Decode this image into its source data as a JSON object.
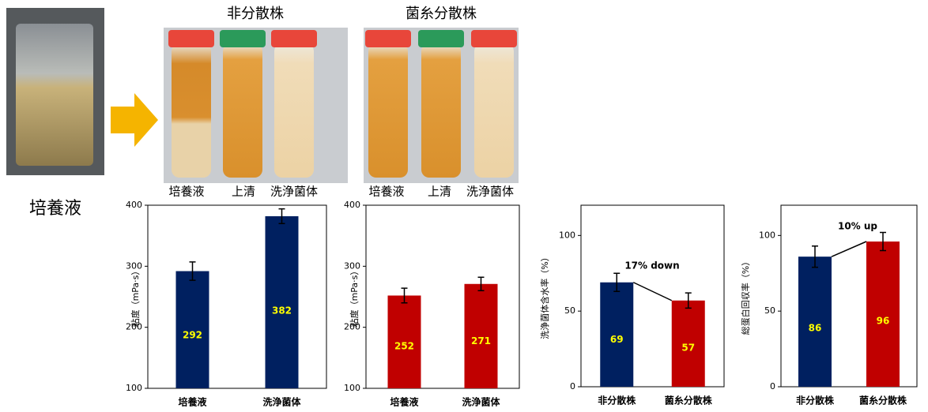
{
  "figure": {
    "culture_label": "培養液",
    "photo_groups": [
      {
        "title": "非分散株",
        "tube_labels": [
          "培養液",
          "上清",
          "洗浄菌体"
        ]
      },
      {
        "title": "菌糸分散株",
        "tube_labels": [
          "培養液",
          "上清",
          "洗浄菌体"
        ]
      }
    ]
  },
  "chart_data": [
    {
      "type": "bar",
      "y_label": "粘度（mPa·s）",
      "categories": [
        "培養液",
        "洗浄菌体"
      ],
      "values": [
        292,
        382
      ],
      "errors": [
        15,
        12
      ],
      "colors": [
        "#002060",
        "#002060"
      ],
      "ylim": [
        100,
        400
      ],
      "yticks": [
        100,
        200,
        300,
        400
      ]
    },
    {
      "type": "bar",
      "y_label": "粘度（mPa·s）",
      "categories": [
        "培養液",
        "洗浄菌体"
      ],
      "values": [
        252,
        271
      ],
      "errors": [
        12,
        11
      ],
      "colors": [
        "#c00000",
        "#c00000"
      ],
      "ylim": [
        100,
        400
      ],
      "yticks": [
        100,
        200,
        300,
        400
      ]
    },
    {
      "type": "bar",
      "y_label": "洗浄菌体含水率（%）",
      "categories": [
        "非分散株",
        "菌糸分散株"
      ],
      "values": [
        69,
        57
      ],
      "errors": [
        6,
        5
      ],
      "colors": [
        "#002060",
        "#c00000"
      ],
      "ylim": [
        0,
        120
      ],
      "yticks": [
        0,
        50,
        100
      ],
      "annotation": "17% down"
    },
    {
      "type": "bar",
      "y_label": "総蛋白回収率（%）",
      "categories": [
        "非分散株",
        "菌糸分散株"
      ],
      "values": [
        86,
        96
      ],
      "errors": [
        7,
        6
      ],
      "colors": [
        "#002060",
        "#c00000"
      ],
      "ylim": [
        0,
        120
      ],
      "yticks": [
        0,
        50,
        100
      ],
      "annotation": "10% up"
    }
  ]
}
